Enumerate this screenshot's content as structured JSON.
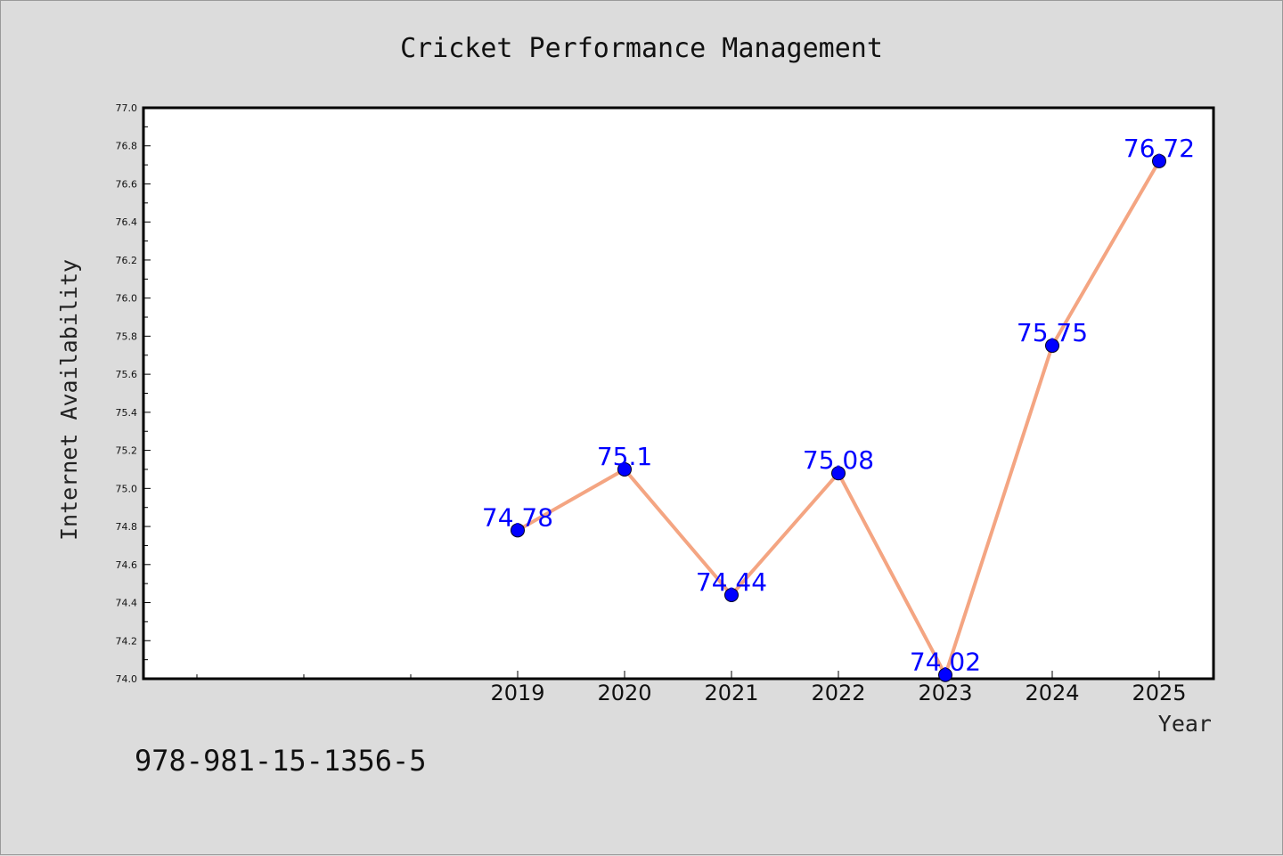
{
  "chart_data": {
    "type": "line",
    "title": "Cricket Performance Management",
    "xlabel": "Year",
    "ylabel": "Internet Availability",
    "categories": [
      "2019",
      "2020",
      "2021",
      "2022",
      "2023",
      "2024",
      "2025"
    ],
    "series": [
      {
        "values": [
          74.78,
          75.1,
          74.44,
          75.08,
          74.02,
          75.75,
          76.72
        ],
        "labels": [
          "74.78",
          "75.1",
          "74.44",
          "75.08",
          "74.02",
          "75.75",
          "76.72"
        ],
        "line_color": "#f4a582",
        "marker_color": "#0000ff"
      }
    ],
    "ylim": [
      74.0,
      77.0
    ],
    "yticks": [
      "74.0",
      "74.2",
      "74.4",
      "74.6",
      "74.8",
      "75.0",
      "75.2",
      "75.4",
      "75.6",
      "75.8",
      "76.0",
      "76.2",
      "76.4",
      "76.6",
      "76.8",
      "77.0"
    ],
    "grid": false,
    "legend": "none"
  },
  "footer": {
    "isbn": "978-981-15-1356-5"
  },
  "colors": {
    "background": "#dcdcdc",
    "plot_background": "#ffffff",
    "label_color": "#0000ff"
  }
}
